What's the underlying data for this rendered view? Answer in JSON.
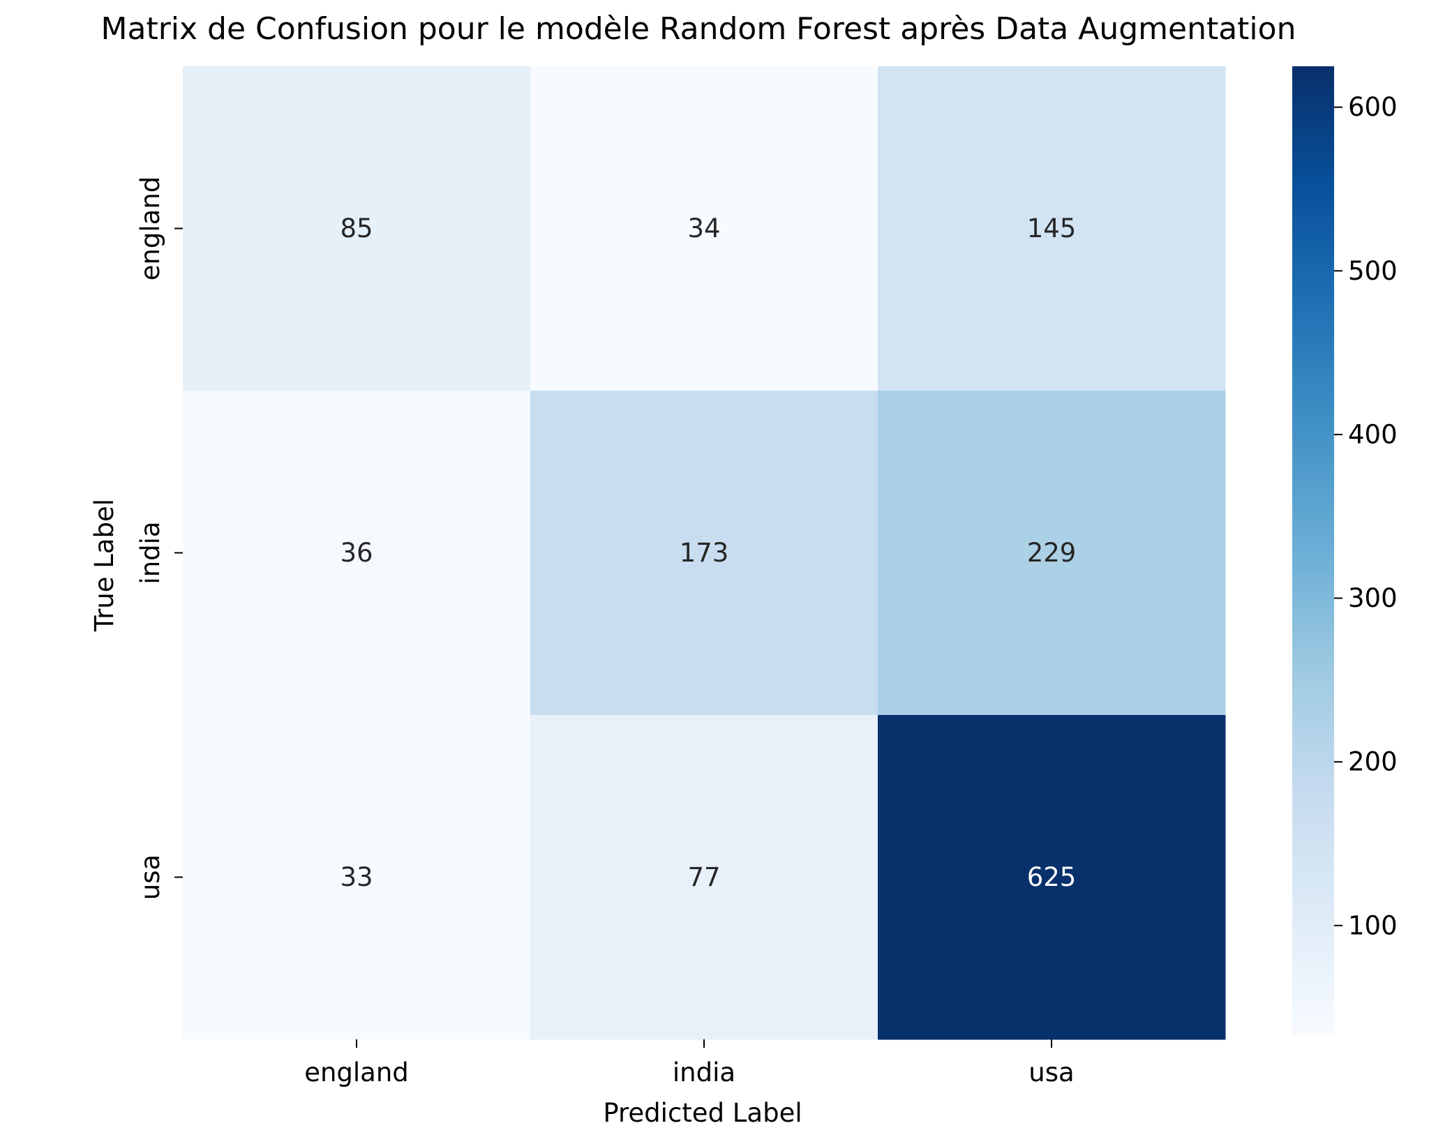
{
  "chart_data": {
    "type": "heatmap",
    "title": "Matrix de Confusion pour le modèle Random Forest après Data Augmentation",
    "xlabel": "Predicted Label",
    "ylabel": "True Label",
    "x_categories": [
      "england",
      "india",
      "usa"
    ],
    "y_categories": [
      "england",
      "india",
      "usa"
    ],
    "matrix": [
      [
        85,
        34,
        145
      ],
      [
        36,
        173,
        229
      ],
      [
        33,
        77,
        625
      ]
    ],
    "colormap": "Blues",
    "color_range": [
      33,
      625
    ],
    "colorbar_ticks": [
      "100",
      "200",
      "300",
      "400",
      "500",
      "600"
    ],
    "text_color_dark": "#262626",
    "text_color_light": "#ffffff"
  }
}
